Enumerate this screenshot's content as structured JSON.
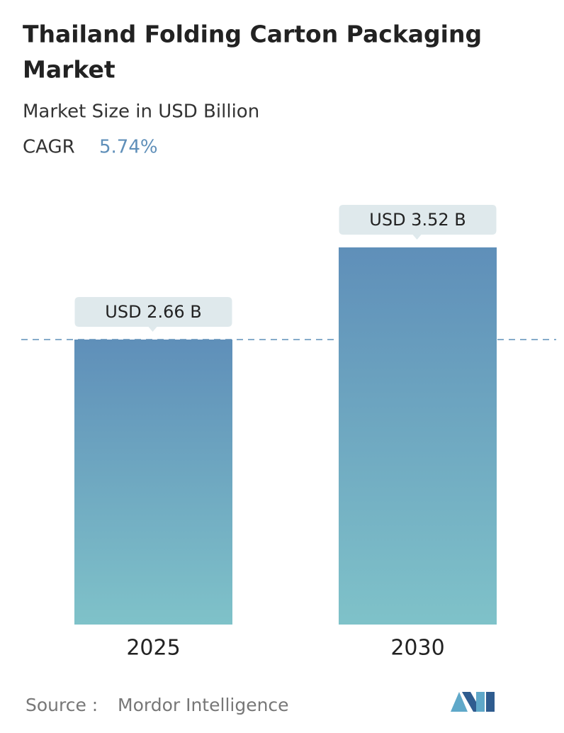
{
  "chart_data": {
    "type": "bar",
    "title": "Thailand Folding Carton Packaging Market",
    "subtitle": "Market Size in USD Billion",
    "cagr_label": "CAGR",
    "cagr": {
      "value": 5.74,
      "label": "5.74%"
    },
    "categories": [
      "2025",
      "2030"
    ],
    "values": [
      2.66,
      3.52
    ],
    "value_labels": [
      "USD 2.66 B",
      "USD 3.52 B"
    ],
    "source_label": "Source :",
    "source": "Mordor Intelligence"
  }
}
